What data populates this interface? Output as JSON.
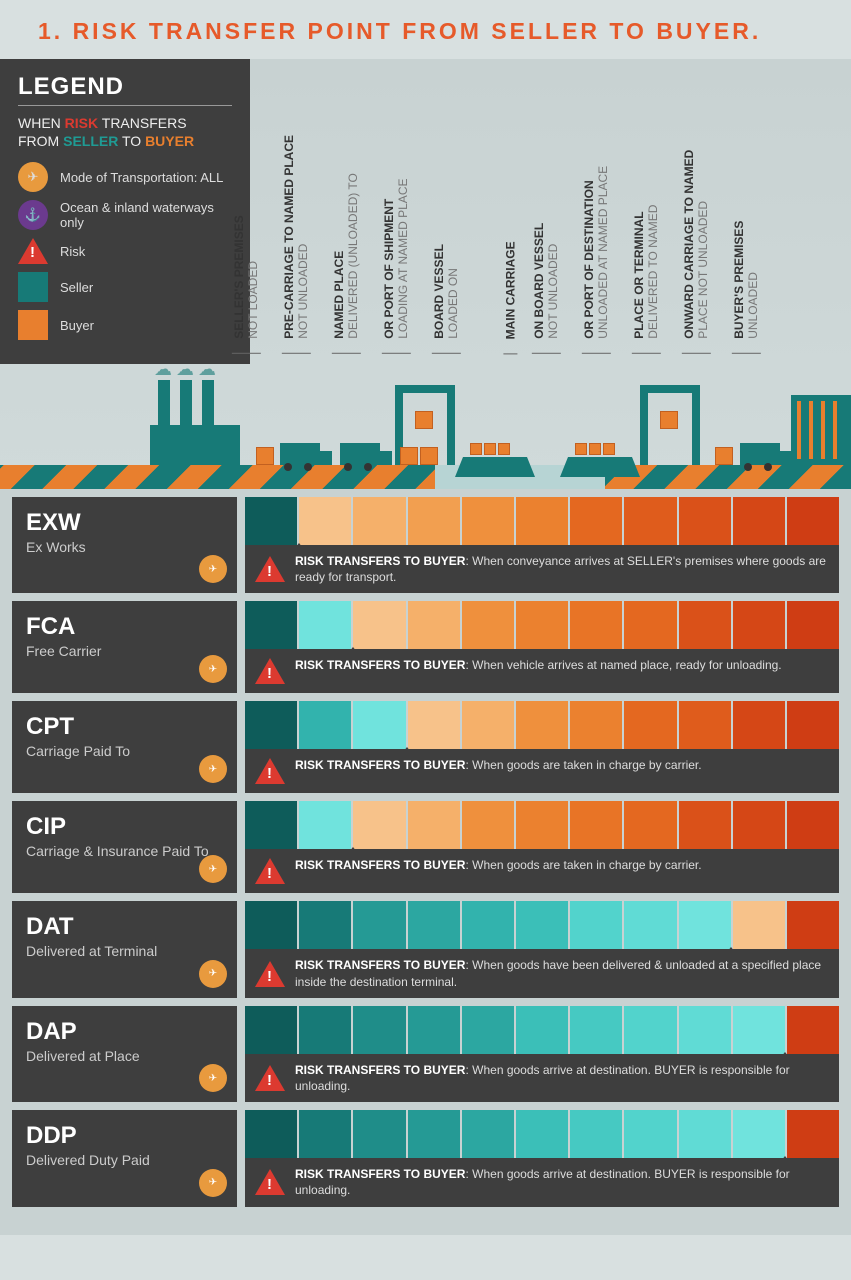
{
  "title": "1. RISK TRANSFER POINT FROM SELLER TO BUYER.",
  "colors": {
    "title": "#e65a2a",
    "dark_bg": "#3e3e3e",
    "risk_red": "#dc3a30",
    "seller_teal_dark": "#177a77",
    "seller_teal_mid": "#1f9b94",
    "seller_teal_light": "#3bb8b0",
    "buyer_orange_light": "#f5b06a",
    "buyer_orange_mid": "#e87f2e",
    "buyer_orange_dark": "#d85a22",
    "mode_all_bg": "#e89a3e",
    "mode_ocean_bg": "#6b3a8e",
    "page_bg": "#c8d2d2"
  },
  "legend": {
    "title": "LEGEND",
    "sub_prefix": "WHEN ",
    "sub_risk": "RISK",
    "sub_mid": " TRANSFERS\nFROM ",
    "sub_seller": "SELLER",
    "sub_to": " TO ",
    "sub_buyer": "BUYER",
    "items": [
      {
        "label": "Mode of Transportation: ALL",
        "icon": "mode-all"
      },
      {
        "label": "Ocean & inland waterways only",
        "icon": "mode-ocean"
      },
      {
        "label": "Risk",
        "icon": "risk"
      },
      {
        "label": "Seller",
        "icon": "seller-sq"
      },
      {
        "label": "Buyer",
        "icon": "buyer-sq"
      }
    ]
  },
  "stages": [
    {
      "bold": "SELLER'S PREMISES",
      "light": "NOT LOADED"
    },
    {
      "bold": "PRE-CARRIAGE TO NAMED PLACE",
      "light": "NOT UNLOADED"
    },
    {
      "bold": "NAMED PLACE",
      "light": "DELIVERED (UNLOADED) TO "
    },
    {
      "bold": "OR PORT OF SHIPMENT",
      "light": "LOADING AT NAMED PLACE "
    },
    {
      "bold": "BOARD VESSEL",
      "light": "LOADED ON"
    },
    {
      "bold": "MAIN CARRIAGE",
      "light": ""
    },
    {
      "bold": "ON BOARD VESSEL",
      "light": "NOT UNLOADED"
    },
    {
      "bold": "OR PORT OF DESTINATION",
      "light": "UNLOADED AT NAMED PLACE"
    },
    {
      "bold": "PLACE OR TERMINAL",
      "light": "DELIVERED TO NAMED"
    },
    {
      "bold": "ONWARD CARRIAGE TO NAMED",
      "light": "PLACE NOT UNLOADED"
    },
    {
      "bold": "BUYER'S PREMISES",
      "light": "UNLOADED"
    }
  ],
  "seller_gradient": [
    "#0e5c5a",
    "#177a77",
    "#1f8d89",
    "#259a95",
    "#2ca7a1",
    "#32b3ad",
    "#3bbfb8",
    "#46c9c2",
    "#52d3cc",
    "#60dbd5",
    "#70e3dd"
  ],
  "buyer_gradient": [
    "#f7c28a",
    "#f5b06a",
    "#f29f50",
    "#ef903d",
    "#eb812f",
    "#e87426",
    "#e46820",
    "#df5c1c",
    "#da5119",
    "#d54716",
    "#cf3d14"
  ],
  "terms": [
    {
      "code": "EXW",
      "name": "Ex Works",
      "transfer_at": 1,
      "note_label": "RISK TRANSFERS TO BUYER",
      "note": "When conveyance arrives at SELLER's premises where goods are ready for transport."
    },
    {
      "code": "FCA",
      "name": "Free Carrier",
      "transfer_at": 2,
      "note_label": "RISK TRANSFERS TO BUYER",
      "note": "When vehicle arrives at named place, ready for unloading."
    },
    {
      "code": "CPT",
      "name": "Carriage Paid To",
      "transfer_at": 3,
      "note_label": "RISK TRANSFERS TO BUYER",
      "note": "When goods are taken in charge by carrier."
    },
    {
      "code": "CIP",
      "name": "Carriage & Insurance Paid To",
      "transfer_at": 2,
      "note_label": "RISK TRANSFERS TO BUYER",
      "note": "When goods are taken in charge by carrier."
    },
    {
      "code": "DAT",
      "name": "Delivered at Terminal",
      "transfer_at": 9,
      "note_label": "RISK TRANSFERS TO BUYER",
      "note": "When goods have been delivered & unloaded at a specified place inside the destination terminal."
    },
    {
      "code": "DAP",
      "name": "Delivered at Place",
      "transfer_at": 10,
      "note_label": "RISK TRANSFERS TO BUYER",
      "note": "When goods arrive at destination. BUYER is responsible for unloading."
    },
    {
      "code": "DDP",
      "name": "Delivered Duty Paid",
      "transfer_at": 10,
      "note_label": "RISK TRANSFERS TO BUYER",
      "note": "When goods arrive at destination. BUYER is responsible for unloading."
    }
  ]
}
